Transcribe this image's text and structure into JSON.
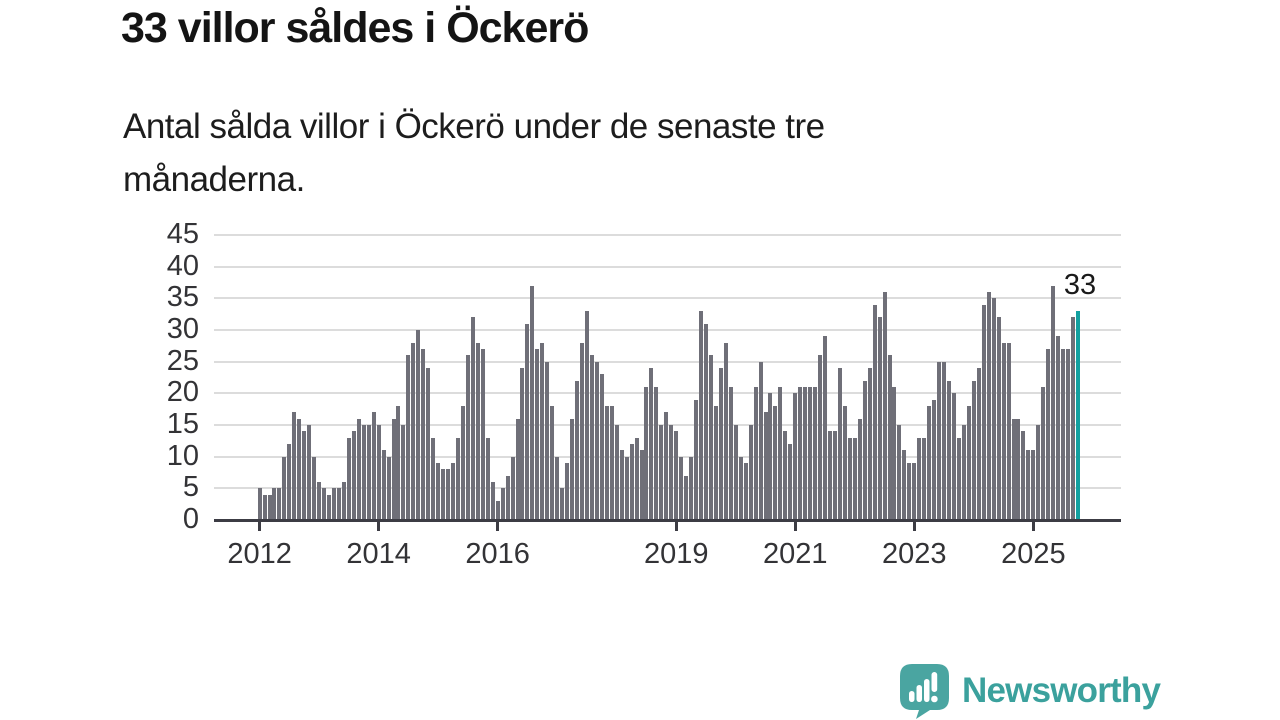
{
  "header": {
    "title": "33 villor såldes i Öckerö",
    "subtitle": "Antal sålda villor i Öckerö under de senaste tre månaderna."
  },
  "chart_data": {
    "type": "bar",
    "title": "33 villor såldes i Öckerö",
    "subtitle": "Antal sålda villor i Öckerö under de senaste tre månaderna.",
    "xlabel": "",
    "ylabel": "",
    "x_unit": "month",
    "x_range": [
      "2012-01",
      "2025-10"
    ],
    "ylim": [
      0,
      45
    ],
    "grid": "horizontal",
    "legend": "none",
    "yticks": [
      0,
      5,
      10,
      15,
      20,
      25,
      30,
      35,
      40,
      45
    ],
    "xticks": [
      {
        "label": "2012",
        "month": 0
      },
      {
        "label": "2014",
        "month": 24
      },
      {
        "label": "2016",
        "month": 48
      },
      {
        "label": "2019",
        "month": 84
      },
      {
        "label": "2021",
        "month": 108
      },
      {
        "label": "2023",
        "month": 132
      },
      {
        "label": "2025",
        "month": 156
      }
    ],
    "values": [
      5,
      4,
      4,
      5,
      5,
      10,
      12,
      17,
      16,
      14,
      15,
      10,
      6,
      5,
      4,
      5,
      5,
      6,
      13,
      14,
      16,
      15,
      15,
      17,
      15,
      11,
      10,
      16,
      18,
      15,
      26,
      28,
      30,
      27,
      24,
      13,
      9,
      8,
      8,
      9,
      13,
      18,
      26,
      32,
      28,
      27,
      13,
      6,
      3,
      5,
      7,
      10,
      16,
      24,
      31,
      37,
      27,
      28,
      25,
      18,
      10,
      5,
      9,
      16,
      22,
      28,
      33,
      26,
      25,
      23,
      18,
      18,
      15,
      11,
      10,
      12,
      13,
      11,
      21,
      24,
      21,
      15,
      17,
      15,
      14,
      10,
      7,
      10,
      19,
      33,
      31,
      26,
      18,
      24,
      28,
      21,
      15,
      10,
      9,
      15,
      21,
      25,
      17,
      20,
      18,
      21,
      14,
      12,
      20,
      21,
      21,
      21,
      21,
      26,
      29,
      14,
      14,
      24,
      18,
      13,
      13,
      16,
      22,
      24,
      34,
      32,
      36,
      26,
      21,
      15,
      11,
      9,
      9,
      13,
      13,
      18,
      19,
      25,
      25,
      22,
      20,
      13,
      15,
      18,
      22,
      24,
      34,
      36,
      35,
      32,
      28,
      28,
      16,
      16,
      14,
      11,
      11,
      15,
      21,
      27,
      37,
      29,
      27,
      27,
      32,
      33
    ],
    "highlight_index": 165,
    "highlight_value_label": "33",
    "colors": {
      "bar": "#6f6f78",
      "highlight": "#12a0a0",
      "gridline": "#dcdcdc",
      "axis": "#3c3c44",
      "tick_text": "#333336",
      "annotation_text": "#1a1a1a"
    }
  },
  "footer": {
    "brand_name": "Newsworthy",
    "brand_color": "#3ba19d"
  }
}
